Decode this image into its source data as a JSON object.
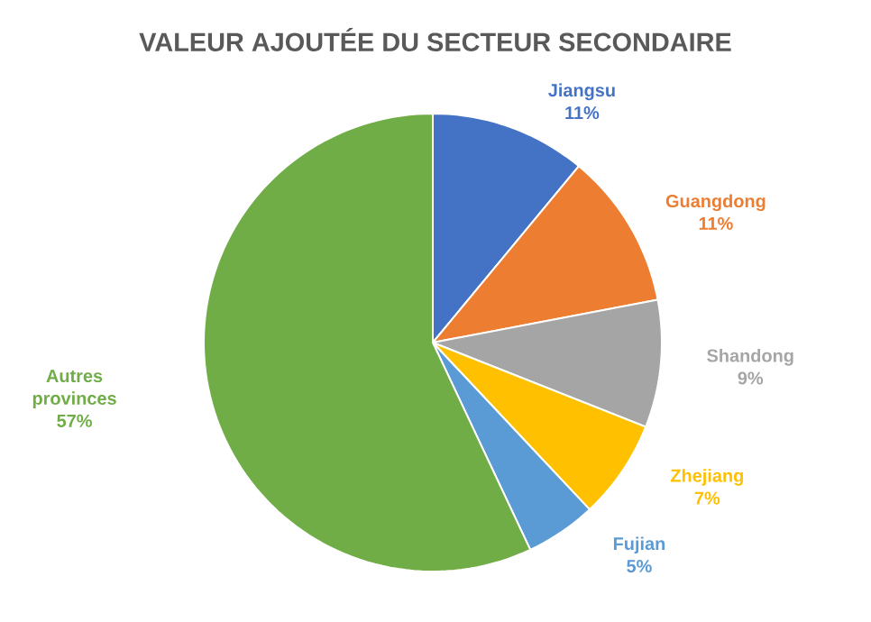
{
  "chart_data": {
    "type": "pie",
    "title": "VALEUR AJOUTÉE DU SECTEUR SECONDAIRE",
    "categories": [
      "Jiangsu",
      "Guangdong",
      "Shandong",
      "Zhejiang",
      "Fujian",
      "Autres provinces"
    ],
    "values": [
      11,
      11,
      9,
      7,
      5,
      57
    ],
    "colors": [
      "#4472c4",
      "#ed7d31",
      "#a5a5a5",
      "#ffc000",
      "#5b9bd5",
      "#70ad47"
    ],
    "value_labels": [
      "11%",
      "11%",
      "9%",
      "7%",
      "5%",
      "57%"
    ]
  }
}
